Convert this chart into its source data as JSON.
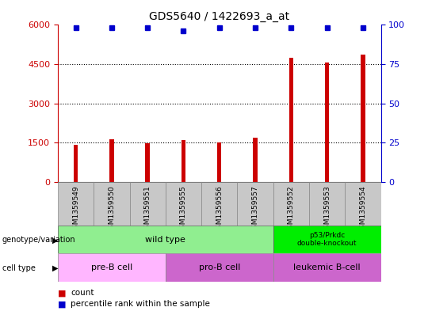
{
  "title": "GDS5640 / 1422693_a_at",
  "samples": [
    "GSM1359549",
    "GSM1359550",
    "GSM1359551",
    "GSM1359555",
    "GSM1359556",
    "GSM1359557",
    "GSM1359552",
    "GSM1359553",
    "GSM1359554"
  ],
  "counts": [
    1430,
    1620,
    1490,
    1590,
    1500,
    1700,
    4750,
    4550,
    4850
  ],
  "percentile_ranks": [
    98,
    98,
    98,
    96,
    98,
    98,
    98,
    98,
    98
  ],
  "ylim_left": [
    0,
    6000
  ],
  "ylim_right": [
    0,
    100
  ],
  "yticks_left": [
    0,
    1500,
    3000,
    4500,
    6000
  ],
  "yticks_right": [
    0,
    25,
    50,
    75,
    100
  ],
  "bar_color": "#CC0000",
  "dot_color": "#0000CC",
  "left_axis_color": "#CC0000",
  "right_axis_color": "#0000CC",
  "bg_color": "#FFFFFF",
  "sample_bg_color": "#C8C8C8",
  "genotype_wt_color": "#90EE90",
  "genotype_ko_color": "#00EE00",
  "cell_pre_color": "#FFB6FF",
  "cell_pro_color": "#CC66CC",
  "cell_leu_color": "#CC66CC",
  "legend_count_color": "#CC0000",
  "legend_pct_color": "#0000CC",
  "bar_width": 0.12
}
